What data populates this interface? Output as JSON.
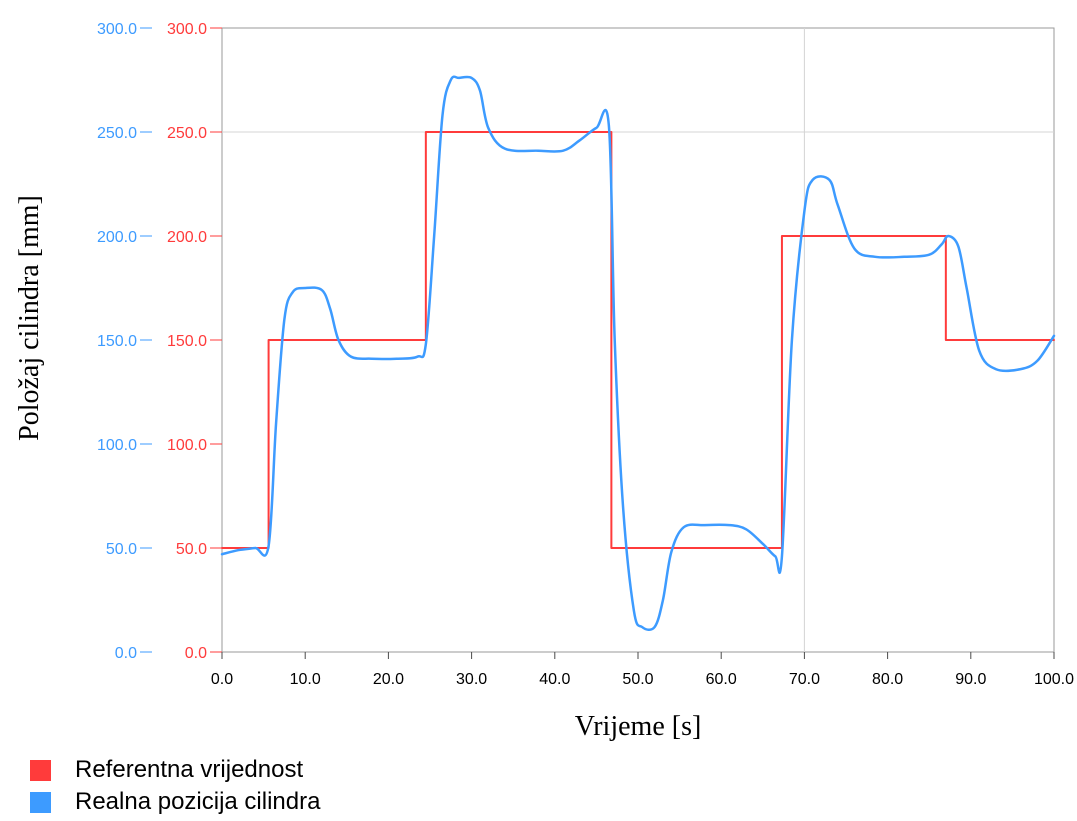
{
  "chart_data": {
    "type": "line",
    "xlabel": "Vrijeme [s]",
    "ylabel": "Položaj cilindra [mm]",
    "xlim": [
      0,
      100
    ],
    "ylim": [
      0,
      300
    ],
    "x_ticks": [
      "0.0",
      "10.0",
      "20.0",
      "30.0",
      "40.0",
      "50.0",
      "60.0",
      "70.0",
      "80.0",
      "90.0",
      "100.0"
    ],
    "y_ticks": [
      "0.0",
      "50.0",
      "100.0",
      "150.0",
      "200.0",
      "250.0",
      "300.0"
    ],
    "grid": {
      "horizontal": [
        250
      ],
      "vertical": [
        70
      ]
    },
    "legend": {
      "position": "bottom-left"
    },
    "series": [
      {
        "name": "Referentna vrijednost",
        "color": "#ff3b3b",
        "x": [
          0,
          5.6,
          5.6,
          24.5,
          24.5,
          46.8,
          46.8,
          67.3,
          67.3,
          87.0,
          87.0,
          100
        ],
        "y": [
          50,
          50,
          150,
          150,
          250,
          250,
          50,
          50,
          200,
          200,
          150,
          150
        ]
      },
      {
        "name": "Realna pozicija cilindra",
        "color": "#3d9bff",
        "x": [
          0,
          2,
          4,
          5.6,
          6.5,
          7.5,
          8.5,
          10,
          12,
          13,
          14,
          15.5,
          18,
          21,
          23.5,
          24.5,
          25.5,
          26.5,
          27.5,
          28.5,
          30,
          31,
          32,
          34,
          38,
          41,
          43,
          45,
          46.5,
          47.2,
          48.2,
          49.5,
          50.5,
          52,
          53,
          54,
          55.5,
          58,
          61,
          63,
          65,
          66.5,
          67.3,
          68.5,
          70,
          71,
          73,
          74,
          76,
          78.5,
          82,
          85,
          86.5,
          87.3,
          88.5,
          89.5,
          91,
          93,
          96,
          98,
          100
        ],
        "y": [
          47,
          49,
          50,
          51,
          110,
          160,
          173,
          175,
          174,
          165,
          150,
          142,
          141,
          141,
          142,
          148,
          200,
          258,
          275,
          276,
          276,
          270,
          252,
          242,
          241,
          241,
          246,
          252,
          253,
          150,
          70,
          20,
          12,
          12,
          25,
          48,
          60,
          61,
          61,
          59,
          52,
          46,
          46,
          150,
          212,
          227,
          227,
          215,
          194,
          190,
          190,
          191,
          196,
          200,
          195,
          175,
          145,
          136,
          136,
          140,
          152
        ]
      }
    ]
  }
}
